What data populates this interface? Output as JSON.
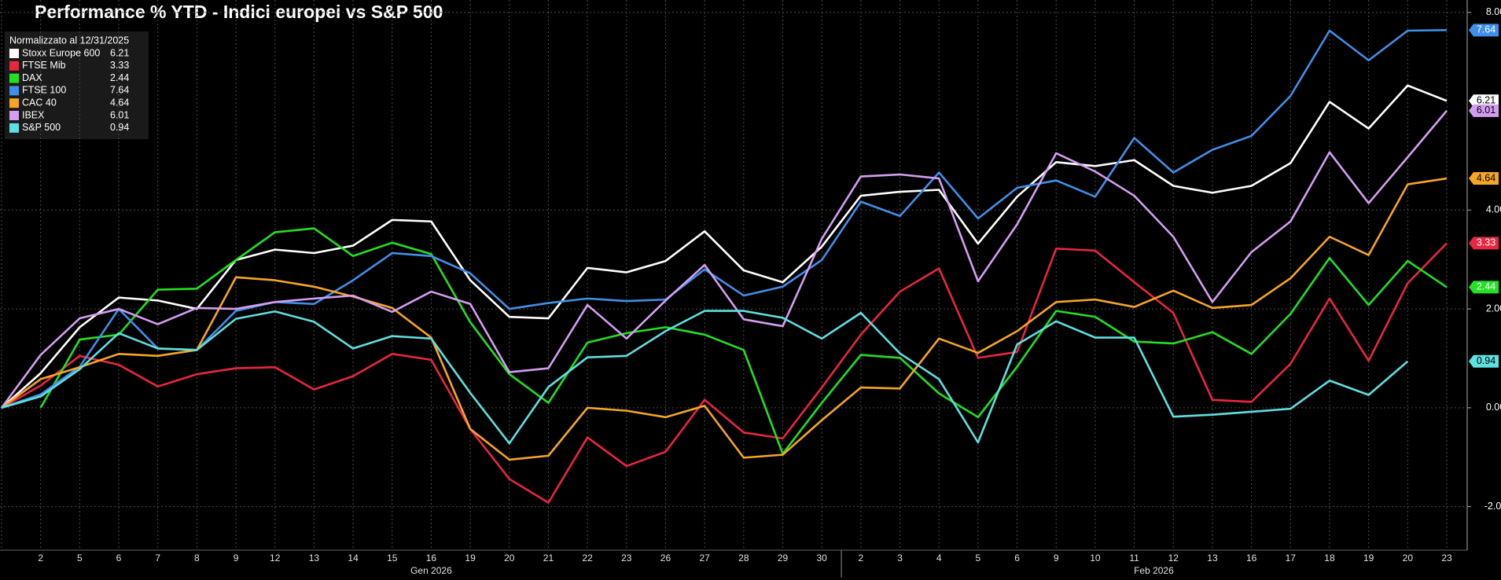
{
  "chart_data": {
    "type": "line",
    "title": "Performance % YTD - Indici europei vs S&P 500",
    "legend_title": "Normalizzato al 12/31/2025",
    "categories": [
      null,
      "2",
      "5",
      "6",
      "7",
      "8",
      "9",
      "12",
      "13",
      "14",
      "15",
      "16",
      "19",
      "20",
      "21",
      "22",
      "23",
      "26",
      "27",
      "28",
      "29",
      "30",
      "2",
      "3",
      "4",
      "5",
      "6",
      "9",
      "10",
      "11",
      "12",
      "13",
      "16",
      "17",
      "18",
      "19",
      "20",
      "23"
    ],
    "x_groups": [
      "Gen 2026",
      "Feb 2026"
    ],
    "ylim": [
      -2.88,
      8.25
    ],
    "yticks": [
      {
        "value": -2,
        "label": "-2.00"
      },
      {
        "value": 0,
        "label": "0.00"
      },
      {
        "value": 2,
        "label": "2.00"
      },
      {
        "value": 4,
        "label": "4.00"
      },
      {
        "value": 8,
        "label": "8.00"
      }
    ],
    "grid": true,
    "series": [
      {
        "name": "Stoxx Europe 600",
        "color": "#ffffff",
        "values": [
          0,
          0.7,
          1.63,
          2.23,
          2.17,
          2.0,
          2.99,
          3.2,
          3.13,
          3.28,
          3.8,
          3.77,
          2.58,
          1.84,
          1.81,
          2.83,
          2.74,
          2.97,
          3.57,
          2.78,
          2.54,
          3.26,
          4.29,
          4.37,
          4.41,
          3.32,
          4.27,
          4.97,
          4.89,
          5.01,
          4.49,
          4.35,
          4.49,
          4.95,
          6.19,
          5.65,
          6.52,
          6.21
        ]
      },
      {
        "name": "FTSE Mib",
        "color": "#e8263f",
        "values": [
          0,
          0.45,
          1.05,
          0.87,
          0.43,
          0.68,
          0.8,
          0.82,
          0.37,
          0.64,
          1.09,
          0.97,
          -0.43,
          -1.44,
          -1.92,
          -0.6,
          -1.18,
          -0.89,
          0.16,
          -0.5,
          -0.62,
          0.41,
          1.48,
          2.35,
          2.82,
          1.01,
          1.13,
          3.22,
          3.18,
          2.54,
          1.92,
          0.16,
          0.12,
          0.89,
          2.21,
          0.95,
          2.52,
          3.33
        ]
      },
      {
        "name": "DAX",
        "color": "#22e022",
        "values": [
          null,
          0,
          1.38,
          1.48,
          2.39,
          2.41,
          2.99,
          3.55,
          3.63,
          3.07,
          3.34,
          3.11,
          1.73,
          0.68,
          0.1,
          1.32,
          1.51,
          1.63,
          1.48,
          1.17,
          -0.93,
          0.1,
          1.07,
          1.01,
          0.29,
          -0.19,
          0.83,
          1.96,
          1.84,
          1.34,
          1.3,
          1.53,
          1.09,
          1.9,
          3.03,
          2.08,
          2.97,
          2.44
        ]
      },
      {
        "name": "FTSE 100",
        "color": "#3f8fe8",
        "values": [
          0,
          0.27,
          0.83,
          2.0,
          1.2,
          1.17,
          1.96,
          2.14,
          2.1,
          2.58,
          3.13,
          3.07,
          2.72,
          2.0,
          2.12,
          2.21,
          2.16,
          2.19,
          2.8,
          2.27,
          2.45,
          2.99,
          4.17,
          3.88,
          4.76,
          3.83,
          4.45,
          4.6,
          4.27,
          5.46,
          4.76,
          5.22,
          5.5,
          6.31,
          7.63,
          7.03,
          7.63,
          7.64
        ]
      },
      {
        "name": "CAC 40",
        "color": "#f5a623",
        "values": [
          0,
          0.58,
          0.82,
          1.09,
          1.05,
          1.17,
          2.64,
          2.58,
          2.45,
          2.25,
          2.02,
          1.42,
          -0.43,
          -1.05,
          -0.97,
          0,
          -0.06,
          -0.19,
          0.04,
          -1.01,
          -0.95,
          -0.25,
          0.41,
          0.39,
          1.4,
          1.11,
          1.55,
          2.14,
          2.19,
          2.04,
          2.37,
          2.02,
          2.08,
          2.62,
          3.46,
          3.09,
          4.52,
          4.64
        ]
      },
      {
        "name": "IBEX",
        "color": "#d49ef0",
        "values": [
          0,
          1.07,
          1.81,
          2.0,
          1.69,
          2.02,
          2.0,
          2.14,
          2.21,
          2.27,
          1.94,
          2.35,
          2.1,
          0.72,
          0.8,
          2.08,
          1.4,
          2.17,
          2.89,
          1.79,
          1.65,
          3.42,
          4.68,
          4.72,
          4.64,
          2.56,
          3.71,
          5.15,
          4.78,
          4.29,
          3.46,
          2.14,
          3.15,
          3.77,
          5.17,
          4.14,
          5.07,
          6.01
        ]
      },
      {
        "name": "S&P 500",
        "color": "#5ee0e0",
        "values": [
          0,
          0.23,
          0.78,
          1.51,
          1.2,
          1.17,
          1.8,
          1.95,
          1.74,
          1.2,
          1.45,
          1.4,
          0.3,
          -0.72,
          0.42,
          1.02,
          1.05,
          1.55,
          1.96,
          1.96,
          1.82,
          1.4,
          1.92,
          1.1,
          0.58,
          -0.7,
          1.28,
          1.75,
          1.42,
          1.42,
          -0.18,
          -0.14,
          -0.08,
          -0.02,
          0.55,
          0.26,
          0.94,
          null
        ]
      }
    ]
  }
}
